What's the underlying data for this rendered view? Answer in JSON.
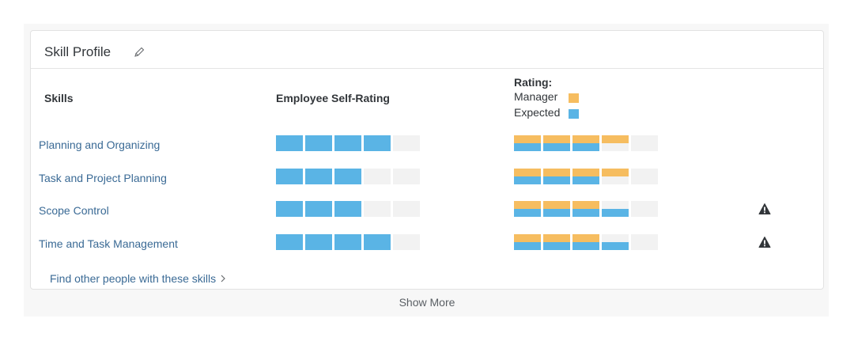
{
  "card": {
    "title": "Skill Profile",
    "edit_icon": "pencil-icon"
  },
  "columns": {
    "skills": "Skills",
    "self_rating": "Employee Self-Rating",
    "rating": "Rating:"
  },
  "legend": {
    "manager": {
      "label": "Manager",
      "color": "#f6bd60"
    },
    "expected": {
      "label": "Expected",
      "color": "#5ab4e5"
    }
  },
  "scale_max": 5,
  "skills": [
    {
      "name": "Planning and Organizing",
      "self": 4,
      "manager": 4,
      "expected": 3,
      "warning": false
    },
    {
      "name": "Task and Project Planning",
      "self": 3,
      "manager": 4,
      "expected": 3,
      "warning": false
    },
    {
      "name": "Scope Control",
      "self": 3,
      "manager": 3,
      "expected": 4,
      "warning": true
    },
    {
      "name": "Time and Task Management",
      "self": 4,
      "manager": 3,
      "expected": 4,
      "warning": true
    }
  ],
  "footer": {
    "find_link": "Find other people with these skills",
    "show_more": "Show More"
  }
}
